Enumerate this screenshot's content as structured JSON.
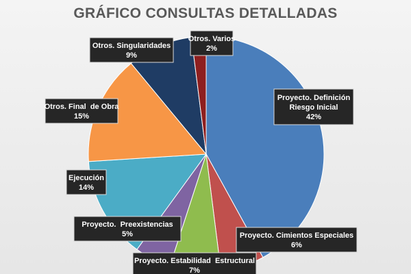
{
  "chart_data": {
    "type": "pie",
    "title": "GRÁFICO CONSULTAS DETALLADAS",
    "categories": [
      "Proyecto. Definición Riesgo Inicial",
      "Proyecto. Cimientos Especiales",
      "Proyecto. Estabilidad  Estructural",
      "Proyecto.  Preexistencias",
      "Ejecución",
      "Otros. Final  de Obra",
      "Otros. Singularidades",
      "Otros. Varios"
    ],
    "label_lines": [
      [
        "Proyecto. Definición",
        "Riesgo Inicial"
      ],
      [
        "Proyecto. Cimientos Especiales"
      ],
      [
        "Proyecto. Estabilidad  Estructural"
      ],
      [
        "Proyecto.  Preexistencias"
      ],
      [
        "Ejecución"
      ],
      [
        "Otros. Final  de Obra"
      ],
      [
        "Otros. Singularidades"
      ],
      [
        "Otros. Varios"
      ]
    ],
    "values": [
      42,
      6,
      7,
      5,
      14,
      15,
      9,
      2
    ],
    "value_labels": [
      "42%",
      "6%",
      "7%",
      "5%",
      "14%",
      "15%",
      "9%",
      "2%"
    ],
    "colors": [
      "#4a7ebb",
      "#c0504d",
      "#8fbc4e",
      "#7f64a2",
      "#4bacc6",
      "#f79646",
      "#1f3c64",
      "#8e1f1f"
    ],
    "start_angle_deg": 0,
    "direction": "clockwise",
    "data_labels": "callout boxes"
  }
}
